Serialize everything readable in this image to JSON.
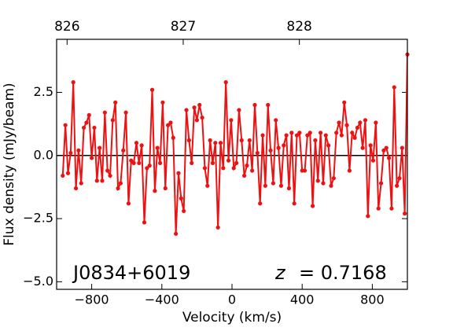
{
  "chart_data": {
    "type": "line",
    "xlabel": "Velocity (km/s)",
    "ylabel": "Flux density (mJy/beam)",
    "annotations": [
      "J0834+6019",
      "z",
      "= 0.7168"
    ],
    "xlim": [
      -1000,
      1000
    ],
    "ylim": [
      -5.3,
      4.6
    ],
    "xticks": [
      {
        "value": -800,
        "label": "−800"
      },
      {
        "value": -400,
        "label": "−400"
      },
      0,
      400,
      800
    ],
    "yticks": [
      {
        "value": -5,
        "label": "−5.0"
      },
      {
        "value": -2.5,
        "label": "−2.5"
      },
      {
        "value": 0,
        "label": "0.0"
      },
      2.5
    ],
    "x2lim": [
      825.91,
      828.93
    ],
    "x2ticks": [
      826,
      827,
      828
    ],
    "hline": 0,
    "x": [
      -965,
      -950,
      -935,
      -920,
      -905,
      -890,
      -875,
      -860,
      -845,
      -830,
      -815,
      -800,
      -785,
      -770,
      -755,
      -740,
      -725,
      -710,
      -695,
      -680,
      -665,
      -650,
      -635,
      -620,
      -605,
      -590,
      -575,
      -560,
      -545,
      -530,
      -515,
      -500,
      -485,
      -470,
      -455,
      -440,
      -425,
      -410,
      -395,
      -380,
      -365,
      -350,
      -335,
      -320,
      -305,
      -290,
      -275,
      -260,
      -245,
      -230,
      -215,
      -200,
      -185,
      -170,
      -155,
      -140,
      -125,
      -110,
      -95,
      -80,
      -65,
      -50,
      -35,
      -20,
      -5,
      10,
      25,
      40,
      55,
      70,
      85,
      100,
      115,
      130,
      145,
      160,
      175,
      190,
      205,
      220,
      235,
      250,
      265,
      280,
      295,
      310,
      325,
      340,
      355,
      370,
      385,
      400,
      415,
      430,
      445,
      460,
      475,
      490,
      505,
      520,
      535,
      550,
      565,
      580,
      595,
      610,
      625,
      640,
      655,
      670,
      685,
      700,
      715,
      730,
      745,
      760,
      775,
      790,
      805,
      820,
      835,
      850,
      865,
      880,
      895,
      910,
      925,
      940,
      955,
      970,
      985,
      1000
    ],
    "series": [
      {
        "color": "#ee1111",
        "values": [
          -0.8,
          1.2,
          -0.7,
          0.1,
          2.9,
          -1.3,
          0.2,
          -1.1,
          1.1,
          1.3,
          1.6,
          -0.1,
          1.1,
          -1.0,
          0.3,
          -1.0,
          1.7,
          -0.6,
          -0.8,
          1.4,
          2.1,
          -1.3,
          -1.1,
          0.2,
          1.7,
          -1.9,
          -0.2,
          -0.3,
          0.5,
          -0.3,
          0.4,
          -2.65,
          -0.5,
          -0.4,
          2.6,
          -1.4,
          0.3,
          -0.3,
          2.1,
          -1.3,
          1.2,
          1.3,
          0.7,
          -3.1,
          -0.7,
          -1.7,
          -2.2,
          1.8,
          0.6,
          -0.3,
          1.9,
          1.4,
          2.0,
          1.5,
          -0.5,
          -1.2,
          0.6,
          -0.3,
          0.5,
          -2.85,
          0.5,
          -0.5,
          2.9,
          -0.2,
          1.4,
          -0.5,
          -0.3,
          1.8,
          0.6,
          -0.8,
          -0.4,
          0.6,
          -0.6,
          2.0,
          0.1,
          -1.9,
          0.8,
          -1.2,
          2.0,
          0.2,
          -1.1,
          1.4,
          0.3,
          -1.2,
          0.4,
          0.8,
          -1.3,
          0.9,
          -1.9,
          0.8,
          0.9,
          -0.6,
          -0.6,
          0.8,
          0.9,
          -2.0,
          0.6,
          -1.0,
          0.9,
          -1.1,
          0.8,
          0.4,
          -1.2,
          -0.9,
          0.9,
          1.3,
          0.8,
          2.1,
          1.2,
          -0.6,
          0.9,
          0.7,
          1.1,
          1.3,
          0.3,
          1.4,
          -2.4,
          0.4,
          -0.2,
          1.3,
          -2.1,
          -1.1,
          0.2,
          0.3,
          -0.1,
          -2.1,
          2.7,
          -1.2,
          -0.9,
          0.3,
          -2.3,
          4.0
        ]
      }
    ]
  }
}
